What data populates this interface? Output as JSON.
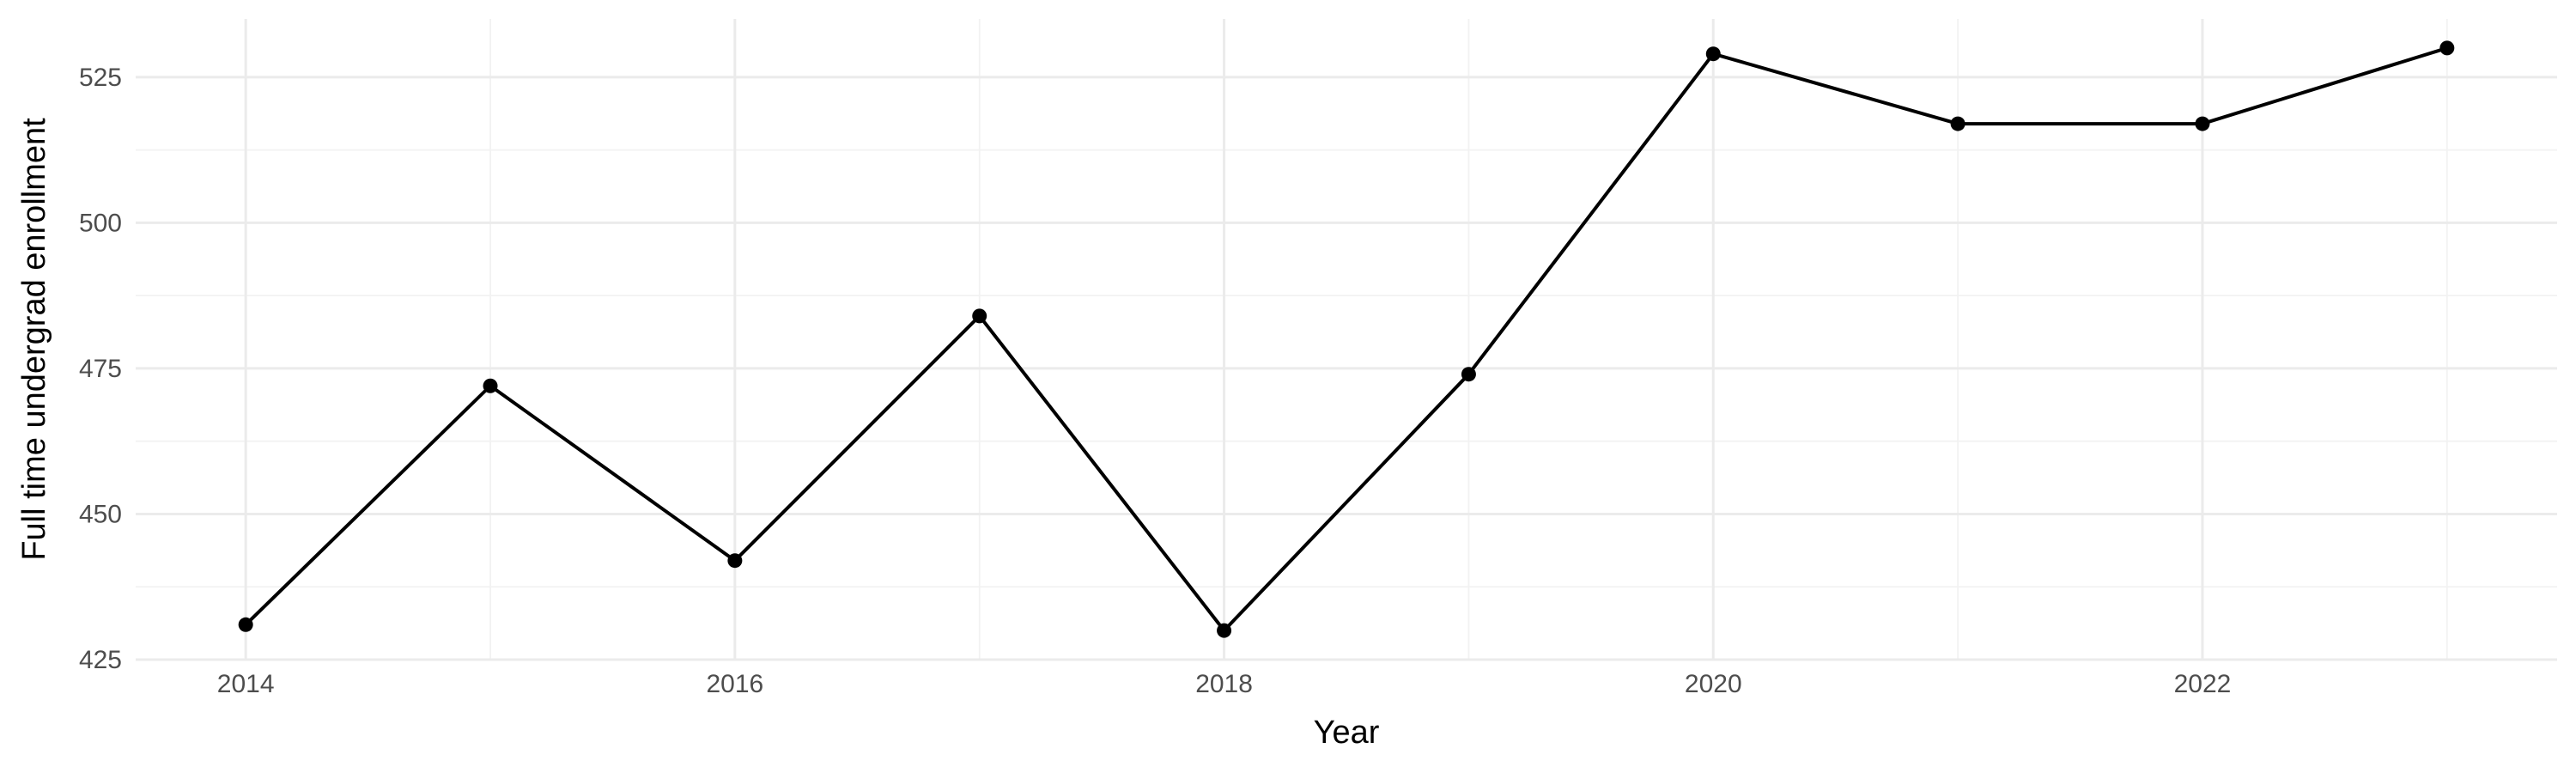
{
  "chart_data": {
    "type": "line",
    "title": "",
    "xlabel": "Year",
    "ylabel": "Full time undergrad enrollment",
    "x": [
      2014,
      2015,
      2016,
      2017,
      2018,
      2019,
      2020,
      2021,
      2022,
      2023
    ],
    "series": [
      {
        "values": [
          431,
          472,
          442,
          484,
          430,
          474,
          529,
          517,
          517,
          530
        ]
      }
    ],
    "xlim": [
      2013.55,
      2023.45
    ],
    "ylim": [
      425,
      535
    ],
    "x_ticks": [
      2014,
      2016,
      2018,
      2020,
      2022
    ],
    "x_tick_labels": [
      "2014",
      "2016",
      "2018",
      "2020",
      "2022"
    ],
    "y_ticks": [
      425,
      450,
      475,
      500,
      525
    ],
    "y_tick_labels": [
      "425",
      "450",
      "475",
      "500",
      "525"
    ],
    "grid": true,
    "line_color": "#000000",
    "point_color": "#000000",
    "background": "#ffffff"
  }
}
